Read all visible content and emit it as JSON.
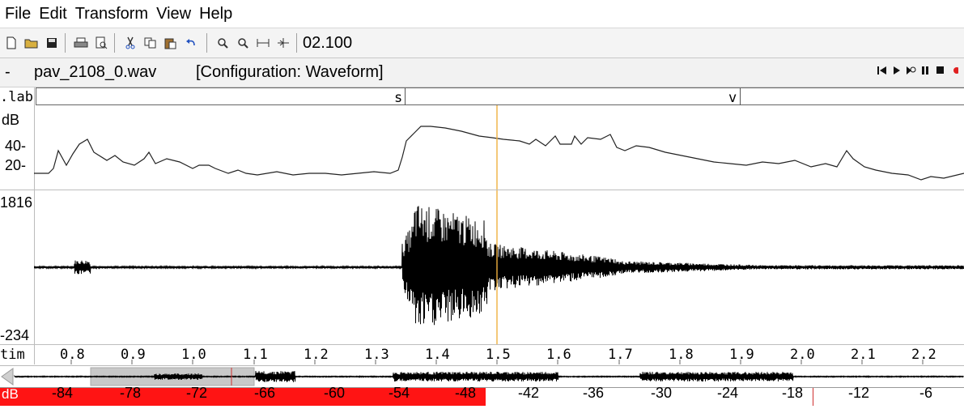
{
  "menu": {
    "items": [
      "File",
      "Edit",
      "Transform",
      "View",
      "Help"
    ]
  },
  "toolbar": {
    "buttons": [
      {
        "icon": "new-file-icon"
      },
      {
        "icon": "open-folder-icon"
      },
      {
        "icon": "save-icon"
      },
      {
        "icon": "print-icon"
      },
      {
        "icon": "print-preview-icon"
      },
      {
        "icon": "cut-icon"
      },
      {
        "icon": "copy-icon"
      },
      {
        "icon": "paste-icon"
      },
      {
        "icon": "undo-icon"
      },
      {
        "icon": "zoom-in-icon"
      },
      {
        "icon": "zoom-out-icon"
      },
      {
        "icon": "zoom-to-selection-icon"
      },
      {
        "icon": "zoom-fit-icon"
      }
    ],
    "time_display": "02.100"
  },
  "title": {
    "dash": "-",
    "file": "pav_2108_0.wav",
    "config": "[Configuration: Waveform]"
  },
  "playback": [
    "skip-to-start-icon",
    "play-icon",
    "loop-play-icon",
    "pause-icon",
    "stop-icon",
    "record-icon"
  ],
  "label_track": {
    "side_label": ".lab",
    "marks": [
      {
        "text": "s"
      },
      {
        "text": "v"
      }
    ]
  },
  "energy_panel": {
    "side_label": "dB",
    "ticks": [
      "40-",
      "20-"
    ]
  },
  "waveform_panel": {
    "max_label": "1816",
    "min_label": "-234"
  },
  "time_axis": {
    "side_label": "tim",
    "ticks": [
      "0.8",
      "0.9",
      "1.0",
      "1.1",
      "1.2",
      "1.3",
      "1.4",
      "1.5",
      "1.6",
      "1.7",
      "1.8",
      "1.9",
      "2.0",
      "2.1",
      "2.2"
    ]
  },
  "db_bar": {
    "side_label": "dB",
    "ticks": [
      "-84",
      "-78",
      "-72",
      "-66",
      "-60",
      "-54",
      "-48",
      "-42",
      "-36",
      "-30",
      "-24",
      "-18",
      "-12",
      "-6"
    ]
  },
  "colors": {
    "cursor": "#f0b040",
    "level_bar": "#ff1414",
    "trace": "#000000"
  }
}
